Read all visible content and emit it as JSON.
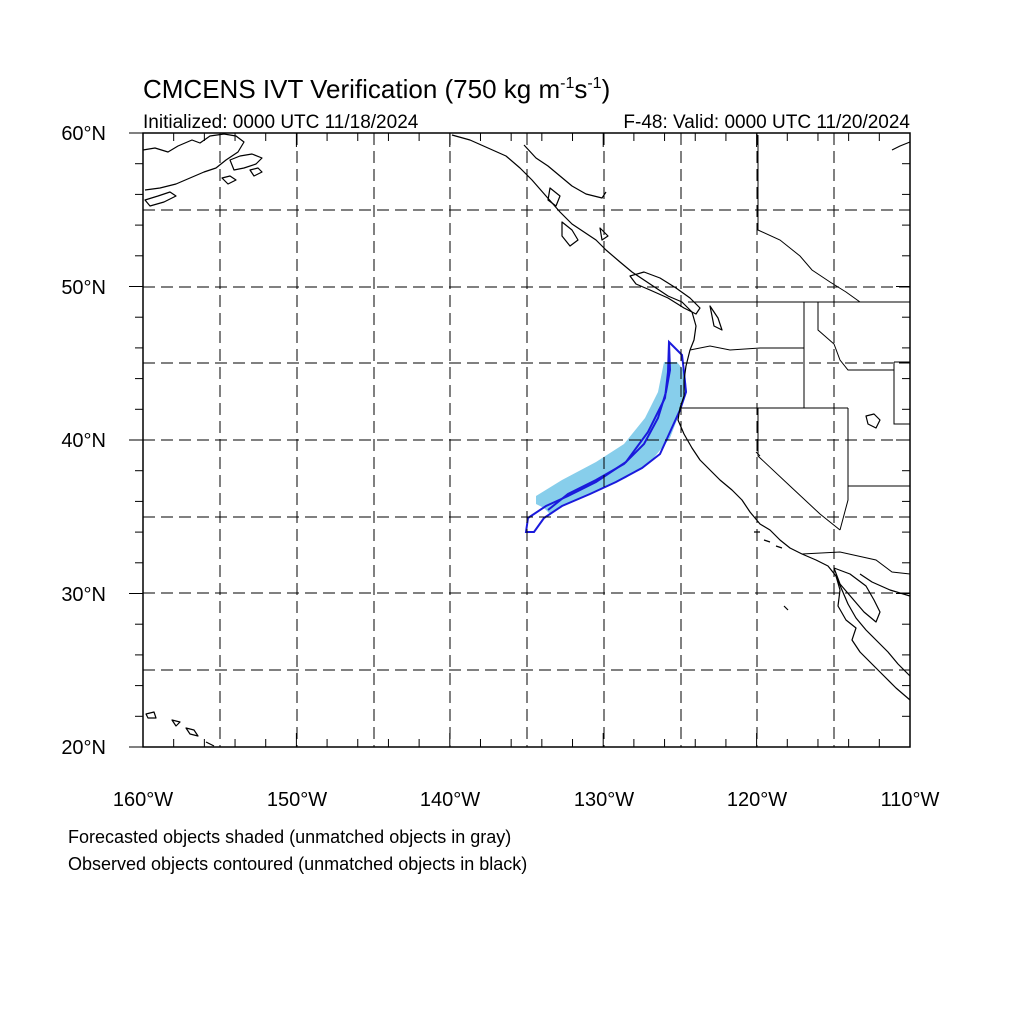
{
  "title_main": "CMCENS IVT Verification (750 kg m",
  "title_sup1": "-1",
  "title_mid": "s",
  "title_sup2": "-1",
  "title_end": ")",
  "initialized": "Initialized: 0000 UTC 11/18/2024",
  "valid": "F-48: Valid: 0000 UTC 11/20/2024",
  "lat_labels": [
    "60°N",
    "50°N",
    "40°N",
    "30°N",
    "20°N"
  ],
  "lon_labels": [
    "160°W",
    "150°W",
    "140°W",
    "130°W",
    "120°W",
    "110°W"
  ],
  "footer": {
    "line1": "Forecasted objects shaded (unmatched objects in gray)",
    "line2": "Observed objects contoured (unmatched objects in black)"
  },
  "map": {
    "lon_range": [
      -160,
      -110
    ],
    "lat_range": [
      20,
      60
    ],
    "projection": "cylindrical equidistant",
    "grid_interval_deg": 5,
    "grid_style": "dashed"
  },
  "colors": {
    "forecast_fill": "#87ceeb",
    "observed_contour": "#1a1adc",
    "coastline": "#000000",
    "grid": "#000000"
  }
}
